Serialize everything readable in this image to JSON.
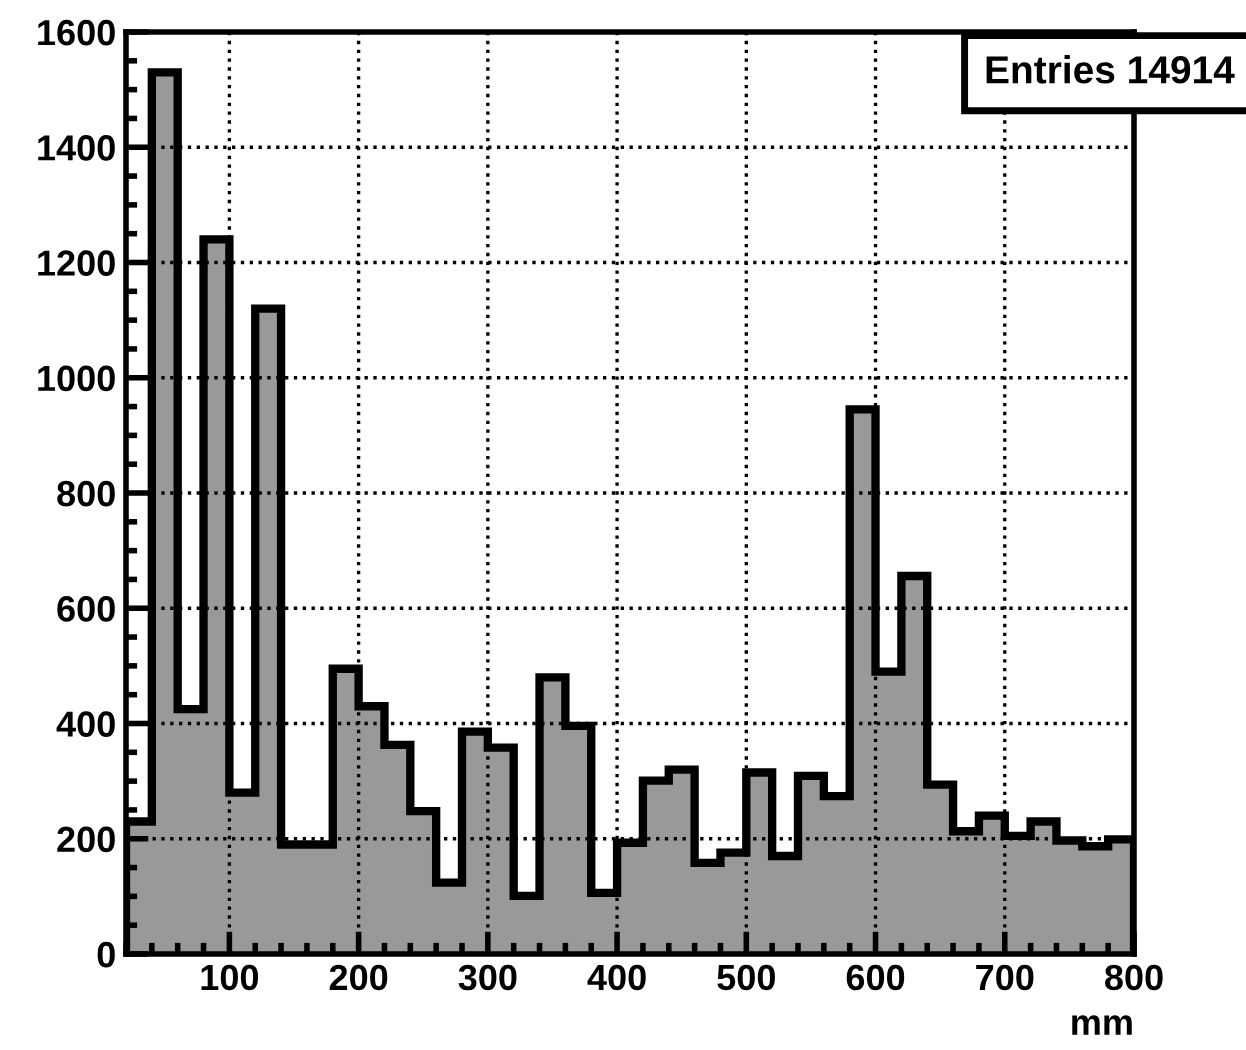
{
  "chart_data": {
    "type": "histogram",
    "xlabel": "mm",
    "bins": [
      20,
      40,
      60,
      80,
      100,
      120,
      140,
      160,
      180,
      200,
      220,
      240,
      260,
      280,
      300,
      320,
      340,
      360,
      380,
      400,
      420,
      440,
      460,
      480,
      500,
      520,
      540,
      560,
      580,
      600,
      620,
      640,
      660,
      680,
      700,
      720,
      740,
      760,
      780,
      800
    ],
    "values": [
      230,
      1530,
      425,
      1240,
      280,
      1120,
      190,
      190,
      495,
      430,
      363,
      248,
      124,
      386,
      358,
      101,
      480,
      396,
      106,
      193,
      301,
      320,
      158,
      176,
      315,
      170,
      309,
      274,
      945,
      490,
      656,
      294,
      213,
      240,
      205,
      230,
      197,
      187,
      199
    ],
    "color": "#999999",
    "xlim": [
      20,
      800
    ],
    "xticks": [
      100,
      200,
      300,
      400,
      500,
      600,
      700,
      800
    ],
    "ylim": [
      0,
      1600
    ],
    "yticks": [
      0,
      200,
      400,
      600,
      800,
      1000,
      1200,
      1400,
      1600
    ],
    "grid": true,
    "annotations": [
      "Entries 14914"
    ]
  }
}
